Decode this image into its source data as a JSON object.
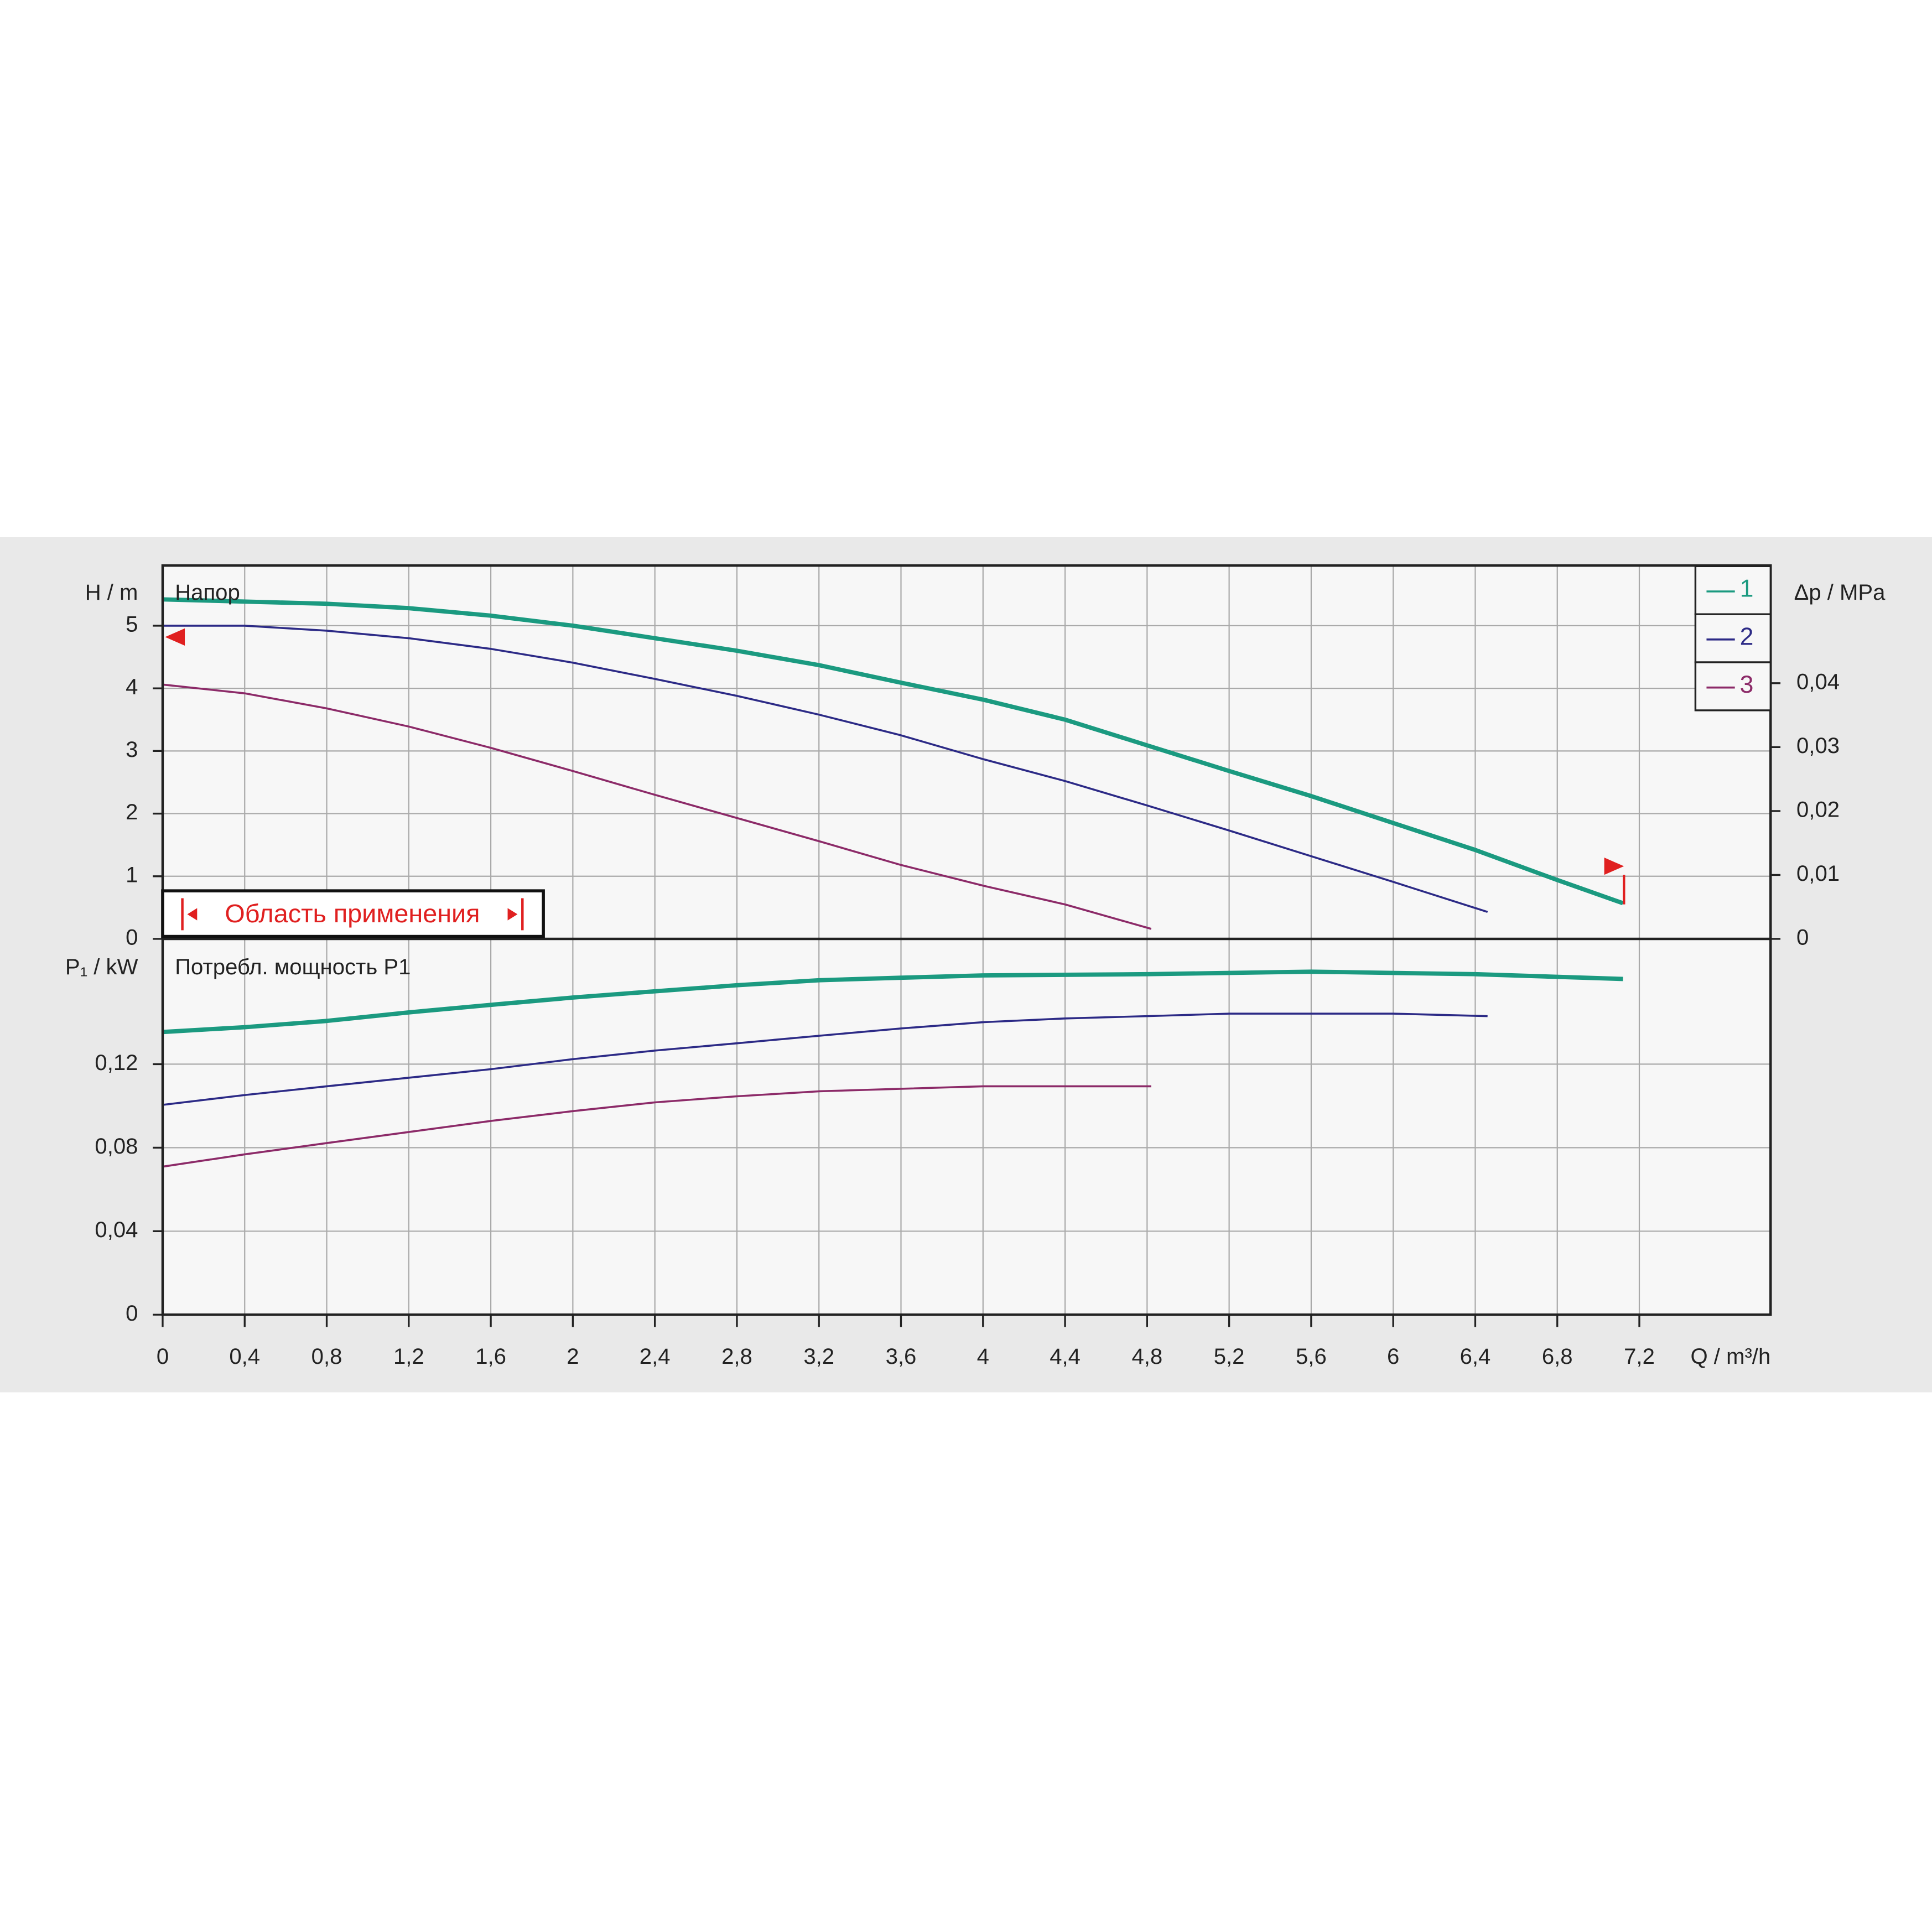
{
  "chart_data": [
    {
      "type": "line",
      "title": "Напор",
      "ylabel": "H / m",
      "y2label": "Δp / MPa",
      "annotation": "Область применения",
      "xlim": [
        0,
        7.84
      ],
      "ylim": [
        0,
        5.96
      ],
      "yticks": [
        0,
        1,
        2,
        3,
        4,
        5
      ],
      "y2lim": [
        0,
        0.0584
      ],
      "y2ticks": [
        0,
        {
          "value": 0.01,
          "label": "0,01"
        },
        {
          "value": 0.02,
          "label": "0,02"
        },
        {
          "value": 0.03,
          "label": "0,03"
        },
        {
          "value": 0.04,
          "label": "0,04"
        }
      ],
      "grid": true,
      "legend": "upper right",
      "series": [
        {
          "name": "1",
          "color": "#1b9a80",
          "width": 3.5,
          "x": [
            0,
            0.8,
            1.2,
            1.6,
            2.0,
            2.4,
            2.8,
            3.2,
            3.6,
            4.0,
            4.4,
            4.8,
            5.2,
            5.6,
            6.0,
            6.4,
            6.8,
            7.12
          ],
          "values": [
            5.42,
            5.35,
            5.28,
            5.16,
            5.0,
            4.8,
            4.6,
            4.37,
            4.09,
            3.82,
            3.5,
            3.09,
            2.68,
            2.28,
            1.85,
            1.42,
            0.94,
            0.57
          ]
        },
        {
          "name": "2",
          "color": "#2c2a86",
          "width": 1.6,
          "x": [
            0,
            0.4,
            0.8,
            1.2,
            1.6,
            2.0,
            2.4,
            2.8,
            3.2,
            3.6,
            4.0,
            4.4,
            4.8,
            5.2,
            5.6,
            6.0,
            6.46
          ],
          "values": [
            5.0,
            5.0,
            4.92,
            4.8,
            4.63,
            4.41,
            4.15,
            3.88,
            3.58,
            3.25,
            2.87,
            2.52,
            2.13,
            1.73,
            1.32,
            0.91,
            0.43
          ]
        },
        {
          "name": "3",
          "color": "#8c2a68",
          "width": 1.6,
          "x": [
            0,
            0.4,
            0.8,
            1.2,
            1.6,
            2.0,
            2.4,
            2.8,
            3.2,
            3.6,
            4.0,
            4.4,
            4.82
          ],
          "values": [
            4.06,
            3.92,
            3.68,
            3.39,
            3.05,
            2.68,
            2.3,
            1.93,
            1.56,
            1.18,
            0.85,
            0.55,
            0.16
          ]
        }
      ]
    },
    {
      "type": "line",
      "title": "Потребл. мощность P1",
      "ylabel": "P₁ / kW",
      "xlabel": "Q / m³/h",
      "xlim": [
        0,
        7.84
      ],
      "ylim": [
        0,
        0.18
      ],
      "xticks": [
        0,
        {
          "value": 0.4,
          "label": "0,4"
        },
        {
          "value": 0.8,
          "label": "0,8"
        },
        {
          "value": 1.2,
          "label": "1,2"
        },
        {
          "value": 1.6,
          "label": "1,6"
        },
        2,
        {
          "value": 2.4,
          "label": "2,4"
        },
        {
          "value": 2.8,
          "label": "2,8"
        },
        {
          "value": 3.2,
          "label": "3,2"
        },
        {
          "value": 3.6,
          "label": "3,6"
        },
        4,
        {
          "value": 4.4,
          "label": "4,4"
        },
        {
          "value": 4.8,
          "label": "4,8"
        },
        {
          "value": 5.2,
          "label": "5,2"
        },
        {
          "value": 5.6,
          "label": "5,6"
        },
        6,
        {
          "value": 6.4,
          "label": "6,4"
        },
        {
          "value": 6.8,
          "label": "6,8"
        },
        {
          "value": 7.2,
          "label": "7,2"
        }
      ],
      "yticks": [
        0,
        {
          "value": 0.04,
          "label": "0,04"
        },
        {
          "value": 0.08,
          "label": "0,08"
        },
        {
          "value": 0.12,
          "label": "0,12"
        }
      ],
      "grid": true,
      "series": [
        {
          "color": "#1b9a80",
          "width": 3.5,
          "x": [
            0,
            0.4,
            0.8,
            1.2,
            1.6,
            2.0,
            2.4,
            2.8,
            3.2,
            3.6,
            4.0,
            4.8,
            5.6,
            6.4,
            7.12
          ],
          "values": [
            0.1354,
            0.1377,
            0.1407,
            0.1448,
            0.1484,
            0.1519,
            0.1549,
            0.1578,
            0.1602,
            0.1614,
            0.1625,
            0.1631,
            0.1643,
            0.1631,
            0.1608
          ]
        },
        {
          "color": "#2c2a86",
          "width": 1.6,
          "x": [
            0,
            0.4,
            0.8,
            1.2,
            1.6,
            2.0,
            2.4,
            2.8,
            3.2,
            3.6,
            4.0,
            4.4,
            4.8,
            5.2,
            6.0,
            6.46
          ],
          "values": [
            0.1005,
            0.1052,
            0.1094,
            0.1135,
            0.1176,
            0.1224,
            0.1265,
            0.13,
            0.1336,
            0.1371,
            0.1401,
            0.1419,
            0.143,
            0.1442,
            0.1442,
            0.143
          ]
        },
        {
          "color": "#8c2a68",
          "width": 1.6,
          "x": [
            0,
            0.4,
            0.8,
            1.2,
            1.6,
            2.0,
            2.4,
            2.8,
            3.2,
            3.6,
            4.0,
            4.82
          ],
          "values": [
            0.0709,
            0.0768,
            0.0822,
            0.0875,
            0.0928,
            0.0975,
            0.1017,
            0.1046,
            0.107,
            0.1082,
            0.1094,
            0.1094
          ]
        }
      ]
    }
  ]
}
